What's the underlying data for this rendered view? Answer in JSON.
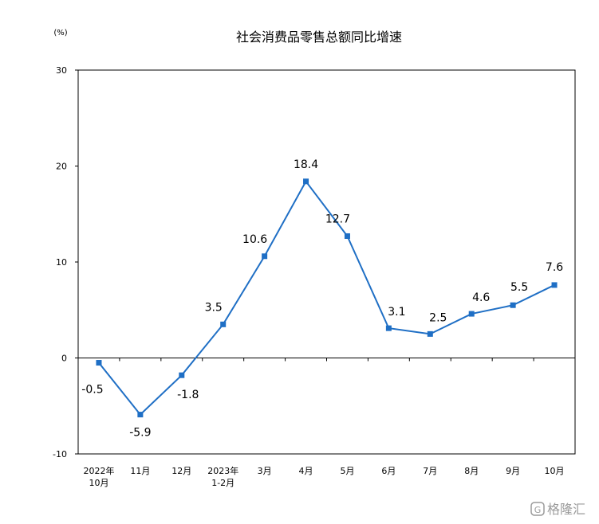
{
  "chart_data": {
    "type": "line",
    "title": "社会消费品零售总额同比增速",
    "unit_label": "(%)",
    "ylim": [
      -10,
      30
    ],
    "yticks": [
      "30",
      "20",
      "10",
      "0",
      "-10"
    ],
    "grid": false,
    "categories": [
      [
        "2022年",
        "10月"
      ],
      [
        "11月"
      ],
      [
        "12月"
      ],
      [
        "2023年",
        "1-2月"
      ],
      [
        "3月"
      ],
      [
        "4月"
      ],
      [
        "5月"
      ],
      [
        "6月"
      ],
      [
        "7月"
      ],
      [
        "8月"
      ],
      [
        "9月"
      ],
      [
        "10月"
      ]
    ],
    "values": [
      -0.5,
      -5.9,
      -1.8,
      3.5,
      10.6,
      18.4,
      12.7,
      3.1,
      2.5,
      4.6,
      5.5,
      7.6
    ],
    "data_labels": [
      "-0.5",
      "-5.9",
      "-1.8",
      "3.5",
      "10.6",
      "18.4",
      "12.7",
      "3.1",
      "2.5",
      "4.6",
      "5.5",
      "7.6"
    ],
    "color": "#1f6fc5"
  },
  "watermark": "格隆汇",
  "watermark_icon": "g-logo-icon"
}
